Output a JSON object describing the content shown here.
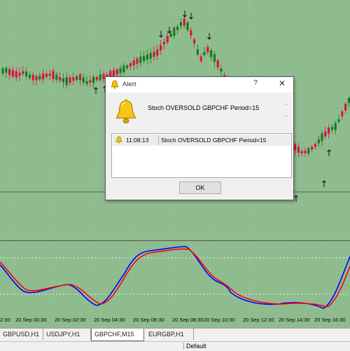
{
  "alert": {
    "title": "Alert",
    "help_label": "?",
    "close_label": "✕",
    "message": "Stoch OVERSOLD GBPCHF Period=15",
    "list": [
      {
        "time": "11:08:13",
        "message": "Stoch OVERSOLD GBPCHF Period=15"
      }
    ],
    "ok_label": "OK"
  },
  "time_axis": {
    "labels": [
      "2:30",
      "20 Sep 00:30",
      "20 Sep 02:30",
      "20 Sep 04:30",
      "20 Sep 06:30",
      "20 Sep 08:30",
      "20 Sep 10:30",
      "20 Sep 12:30",
      "20 Sep 14:30",
      "20 Sep 16:30"
    ]
  },
  "tabs": [
    {
      "label": "GBPUSD,H1",
      "active": false
    },
    {
      "label": "USDJPY,H1",
      "active": false
    },
    {
      "label": "GBPCHF,M15",
      "active": true
    },
    {
      "label": "EURGBP,H1",
      "active": false
    }
  ],
  "status": {
    "profile": "Default"
  },
  "colors": {
    "background": "#8fbc8f",
    "bull": "#1b7a1b",
    "bear": "#dc143c",
    "main_line": "#0000ff",
    "signal_line": "#ff0000",
    "level_line": "#ffffff"
  },
  "icons": {
    "alert_bell": "bell-icon",
    "arrow_up": "up-arrow-icon",
    "arrow_down": "down-arrow-icon"
  }
}
